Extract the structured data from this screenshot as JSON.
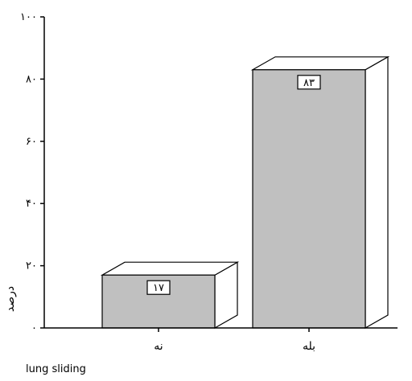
{
  "chart_data": {
    "type": "bar",
    "categories": [
      "نه",
      "بله"
    ],
    "values": [
      17,
      83
    ],
    "data_labels": [
      "۱۷",
      "۸۳"
    ],
    "ylabel": "درصد",
    "xlabel": "lung sliding",
    "ylim": [
      0,
      100
    ],
    "yticks": [
      0,
      20,
      40,
      60,
      80,
      100
    ],
    "ytick_labels": [
      "۰",
      "۲۰",
      "۴۰",
      "۶۰",
      "۸۰",
      "۱۰۰"
    ],
    "grid": false,
    "bar_style": "3d",
    "colors": {
      "bar_front": "#c0c0c0",
      "bar_side": "#ffffff",
      "outline": "#000000"
    }
  }
}
